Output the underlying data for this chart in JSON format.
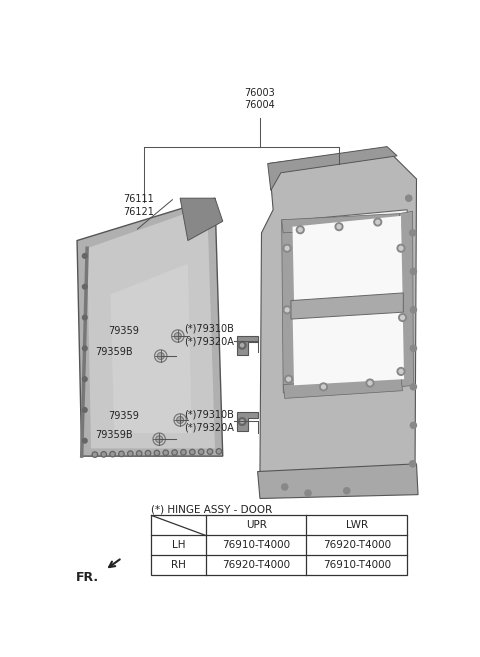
{
  "bg_color": "#ffffff",
  "text_color": "#222222",
  "line_color": "#555555",
  "gray_panel": "#a8a8a8",
  "gray_panel_light": "#c8c8c8",
  "gray_frame": "#b0b0b0",
  "gray_frame_dark": "#888888",
  "gray_frame_light": "#d4d4d4",
  "label_76003": "76003\n76004",
  "label_76111": "76111\n76121",
  "label_79310B_u": "(*)79310B\n(*)79320A",
  "label_79359_u": "79359",
  "label_79359B_u": "79359B",
  "label_79310B_l": "(*)79310B\n(*)79320A",
  "label_79359_l": "79359",
  "label_79359B_l": "79359B",
  "table_title": "(*) HINGE ASSY - DOOR",
  "table_headers": [
    "",
    "UPR",
    "LWR"
  ],
  "table_rows": [
    [
      "LH",
      "76910-T4000",
      "76920-T4000"
    ],
    [
      "RH",
      "76920-T4000",
      "76910-T4000"
    ]
  ],
  "fr_label": "FR."
}
